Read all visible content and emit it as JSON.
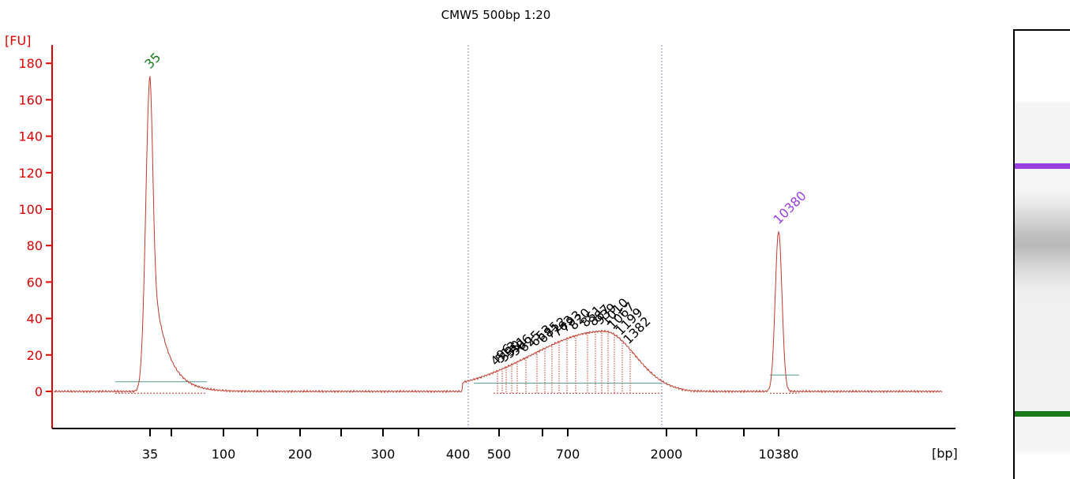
{
  "chart_data": {
    "type": "line",
    "title": "CMW5 500bp 1:20",
    "ylabel": "[FU]",
    "xlabel": "[bp]",
    "ylim": [
      -20,
      185
    ],
    "y_ticks": [
      0,
      20,
      40,
      60,
      80,
      100,
      120,
      140,
      160,
      180
    ],
    "x_tick_labels": [
      "35",
      "100",
      "200",
      "300",
      "400",
      "500",
      "700",
      "2000",
      "10380"
    ],
    "grid": false,
    "colors": {
      "trace": "#c0392b",
      "axis": "#e00000",
      "baseline": "#4f9b8f",
      "lower_marker": "#1a7a1a",
      "upper_marker": "#9b3fe0",
      "region_line": "#8888bb"
    },
    "marker_peaks": [
      {
        "label": "35",
        "size_bp": 35,
        "fu": 173,
        "color": "#1a7a1a"
      },
      {
        "label": "10380",
        "size_bp": 10380,
        "fu": 88,
        "color": "#9b3fe0"
      }
    ],
    "smear_peak_labels": [
      "496",
      "513",
      "530",
      "551",
      "586",
      "625",
      "653",
      "685",
      "712",
      "763",
      "793",
      "820",
      "851",
      "887",
      "939",
      "1010",
      "1067",
      "1199",
      "1382"
    ],
    "smear_region": {
      "from_bp": 400,
      "to_bp": 2000,
      "max_fu": 33
    },
    "series": [
      {
        "x": [
          "below 35",
          "35",
          "peak 35 tail",
          "100",
          "200",
          "300",
          "400",
          "500",
          "700",
          "smear max",
          "2000",
          "10380",
          "above 10380"
        ],
        "values": [
          0,
          173,
          60,
          0,
          0,
          0,
          1,
          12,
          27,
          33,
          5,
          88,
          0
        ]
      }
    ]
  },
  "gel": {
    "lower_marker_color": "#1a7a1a",
    "upper_marker_color": "#9b3fe0"
  }
}
